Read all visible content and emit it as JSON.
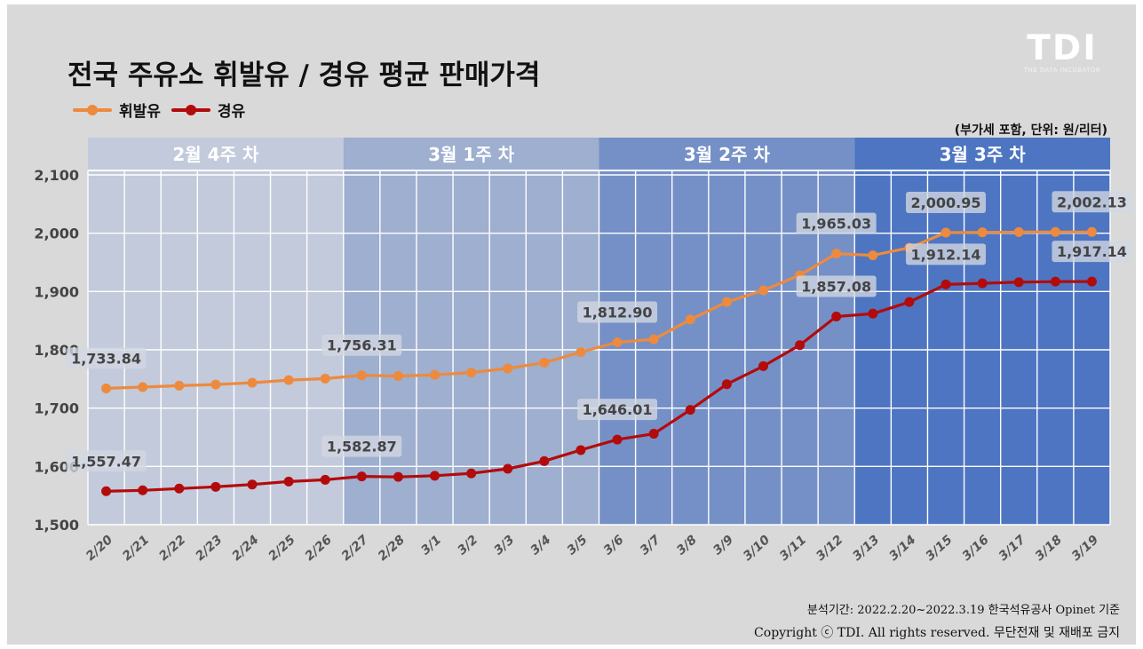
{
  "header": {
    "title": "전국 주유소 휘발유 / 경유 평균 판매가격",
    "unit_note": "(부가세 포함, 단위: 원/리터)",
    "logo_text": "TDI",
    "logo_sub": "THE DATA INCUBATOR"
  },
  "legend": {
    "gasoline": "휘발유",
    "diesel": "경유"
  },
  "colors": {
    "gasoline": "#ed8a3e",
    "diesel": "#b30b0b",
    "week_bands": [
      "#c3cadb",
      "#9eafcf",
      "#7590c7",
      "#4d75c1"
    ]
  },
  "footer": {
    "period": "분석기간: 2022.2.20~2022.3.19   한국석유공사 Opinet 기준",
    "copyright": "Copyright ⓒ TDI. All rights reserved. 무단전재 및 재배포 금지"
  },
  "chart_data": {
    "type": "line",
    "title": "전국 주유소 휘발유 / 경유 평균 판매가격",
    "xlabel": "",
    "ylabel": "",
    "ylim": [
      1500,
      2100
    ],
    "yticks": [
      1500,
      1600,
      1700,
      1800,
      1900,
      2000,
      2100
    ],
    "ytick_labels": [
      "1,500",
      "1,600",
      "1,700",
      "1,800",
      "1,900",
      "2,000",
      "2,100"
    ],
    "grid": true,
    "legend_position": "top-left",
    "categories": [
      "2/20",
      "2/21",
      "2/22",
      "2/23",
      "2/24",
      "2/25",
      "2/26",
      "2/27",
      "2/28",
      "3/1",
      "3/2",
      "3/3",
      "3/4",
      "3/5",
      "3/6",
      "3/7",
      "3/8",
      "3/9",
      "3/10",
      "3/11",
      "3/12",
      "3/13",
      "3/14",
      "3/15",
      "3/16",
      "3/17",
      "3/18",
      "3/19"
    ],
    "week_bands": [
      {
        "label": "2월 4주 차",
        "start": 0,
        "end": 6
      },
      {
        "label": "3월 1주 차",
        "start": 7,
        "end": 13
      },
      {
        "label": "3월 2주 차",
        "start": 14,
        "end": 20
      },
      {
        "label": "3월 3주 차",
        "start": 21,
        "end": 27
      }
    ],
    "series": [
      {
        "name": "휘발유",
        "values": [
          1733.84,
          1736,
          1738.5,
          1740.5,
          1743.5,
          1748,
          1750.5,
          1756.31,
          1755,
          1757,
          1761,
          1768,
          1778,
          1796,
          1812.9,
          1818,
          1852,
          1882,
          1902,
          1928,
          1965.03,
          1962,
          1975,
          2000.95,
          2001.5,
          2002,
          2002.1,
          2002.13
        ],
        "labels": [
          {
            "index": 0,
            "text": "1,733.84"
          },
          {
            "index": 7,
            "text": "1,756.31"
          },
          {
            "index": 14,
            "text": "1,812.90"
          },
          {
            "index": 20,
            "text": "1,965.03"
          },
          {
            "index": 23,
            "text": "2,000.95"
          },
          {
            "index": 27,
            "text": "2,002.13"
          }
        ]
      },
      {
        "name": "경유",
        "values": [
          1557.47,
          1559,
          1562,
          1565,
          1569,
          1574,
          1577,
          1582.87,
          1582,
          1584,
          1588,
          1596,
          1609,
          1628,
          1646.01,
          1656,
          1697,
          1741,
          1772,
          1808,
          1857.08,
          1862,
          1882,
          1912.14,
          1914,
          1916,
          1917,
          1917.14
        ],
        "labels": [
          {
            "index": 0,
            "text": "1,557.47"
          },
          {
            "index": 7,
            "text": "1,582.87"
          },
          {
            "index": 14,
            "text": "1,646.01"
          },
          {
            "index": 20,
            "text": "1,857.08"
          },
          {
            "index": 23,
            "text": "1,912.14"
          },
          {
            "index": 27,
            "text": "1,917.14"
          }
        ]
      }
    ]
  }
}
